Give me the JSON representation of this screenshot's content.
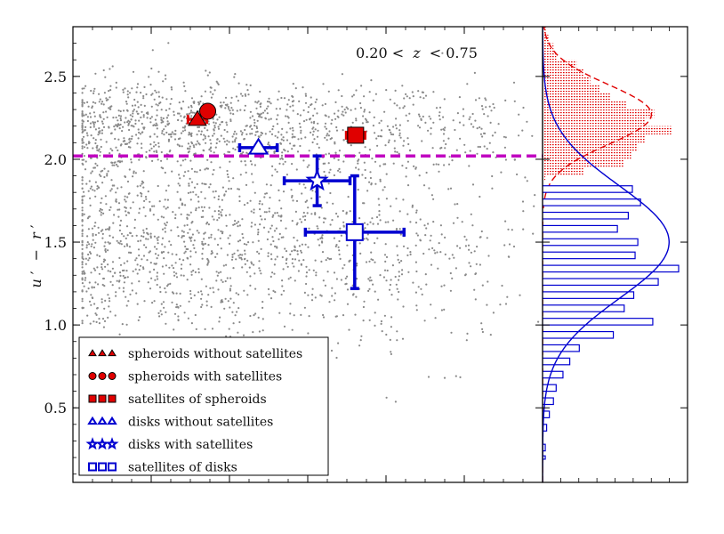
{
  "chart_data": {
    "type": "scatter",
    "title": "",
    "annotation": {
      "prefix": "0.20 <",
      "variable": "z",
      "suffix": "< 0.75"
    },
    "ylabel": {
      "main": "u",
      "prime1": "′",
      "minus": "−",
      "second": "r",
      "prime2": "′"
    },
    "xlabel": "",
    "xlim": [
      0,
      1
    ],
    "ylim": [
      0.05,
      2.8
    ],
    "y_ticks": [
      0.5,
      1.0,
      1.5,
      2.0,
      2.5
    ],
    "y_tick_labels": [
      "0.5",
      "1.0",
      "1.5",
      "2.0",
      "2.5"
    ],
    "threshold_line": {
      "y": 2.02,
      "color": "#c000c0"
    },
    "background_points": {
      "count": 2600,
      "color": "#8a8a8a"
    },
    "series": [
      {
        "name": "spheroids without satellites",
        "marker": "triangle",
        "filled": true,
        "color": "#e00000",
        "x": 0.265,
        "y": 2.24,
        "xerr": 0.02,
        "yerr": 0.0
      },
      {
        "name": "spheroids with satellites",
        "marker": "circle",
        "filled": true,
        "color": "#e00000",
        "x": 0.287,
        "y": 2.29,
        "xerr": 0.0,
        "yerr": 0.0
      },
      {
        "name": "satellites of spheroids",
        "marker": "square",
        "filled": true,
        "color": "#e00000",
        "x": 0.602,
        "y": 2.145,
        "xerr": 0.02,
        "yerr": 0.03
      },
      {
        "name": "disks without satellites",
        "marker": "triangle",
        "filled": false,
        "color": "#0000d0",
        "x": 0.395,
        "y": 2.07,
        "xerr": 0.04,
        "yerr": 0.01
      },
      {
        "name": "disks with satellites",
        "marker": "star",
        "filled": false,
        "color": "#0000d0",
        "x": 0.52,
        "y": 1.87,
        "xerr": 0.07,
        "yerr": 0.15
      },
      {
        "name": "satellites of disks",
        "marker": "square",
        "filled": false,
        "color": "#0000d0",
        "x": 0.6,
        "y": 1.56,
        "xerr": 0.105,
        "yerr": 0.34
      }
    ],
    "legend": {
      "placement": "lower-left",
      "entries": [
        "spheroids without satellites",
        "spheroids with satellites",
        "satellites of spheroids",
        "disks without satellites",
        "disks with satellites",
        "satellites of disks"
      ]
    },
    "side_histograms": [
      {
        "name": "spheroids",
        "color": "#e00000",
        "style": "dotted-fill",
        "bins": [
          [
            1.87,
            1.9,
            0.02
          ],
          [
            1.9,
            1.95,
            0.3
          ],
          [
            1.95,
            2.0,
            0.6
          ],
          [
            2.0,
            2.05,
            0.65
          ],
          [
            2.05,
            2.1,
            0.7
          ],
          [
            2.1,
            2.15,
            0.75
          ],
          [
            2.15,
            2.2,
            0.95
          ],
          [
            2.2,
            2.25,
            0.75
          ],
          [
            2.25,
            2.3,
            0.82
          ],
          [
            2.3,
            2.35,
            0.62
          ],
          [
            2.35,
            2.4,
            0.5
          ],
          [
            2.4,
            2.45,
            0.42
          ],
          [
            2.45,
            2.5,
            0.35
          ],
          [
            2.5,
            2.55,
            0.3
          ],
          [
            2.55,
            2.6,
            0.25
          ],
          [
            2.6,
            2.65,
            0.1
          ],
          [
            2.65,
            2.7,
            0.08
          ],
          [
            2.7,
            2.75,
            0.05
          ],
          [
            2.75,
            2.8,
            0.03
          ]
        ],
        "fit": {
          "mu": 2.27,
          "sigma": 0.18,
          "peak": 0.8,
          "dashed": true
        }
      },
      {
        "name": "disks",
        "color": "#0000d0",
        "style": "outline",
        "bins": [
          [
            1.8,
            1.84,
            0.66
          ],
          [
            1.72,
            1.76,
            0.72
          ],
          [
            1.64,
            1.68,
            0.63
          ],
          [
            1.56,
            1.6,
            0.55
          ],
          [
            1.48,
            1.52,
            0.7
          ],
          [
            1.4,
            1.44,
            0.68
          ],
          [
            1.32,
            1.36,
            1.0
          ],
          [
            1.24,
            1.28,
            0.85
          ],
          [
            1.16,
            1.2,
            0.67
          ],
          [
            1.08,
            1.12,
            0.6
          ],
          [
            1.0,
            1.04,
            0.81
          ],
          [
            0.92,
            0.96,
            0.52
          ],
          [
            0.84,
            0.88,
            0.27
          ],
          [
            0.76,
            0.8,
            0.2
          ],
          [
            0.68,
            0.72,
            0.15
          ],
          [
            0.6,
            0.64,
            0.1
          ],
          [
            0.52,
            0.56,
            0.08
          ],
          [
            0.44,
            0.48,
            0.05
          ],
          [
            0.36,
            0.4,
            0.03
          ],
          [
            0.24,
            0.28,
            0.02
          ],
          [
            0.19,
            0.21,
            0.02
          ]
        ],
        "fit": {
          "mu": 1.5,
          "sigma": 0.34,
          "peak": 0.93,
          "dashed": false
        }
      }
    ]
  }
}
